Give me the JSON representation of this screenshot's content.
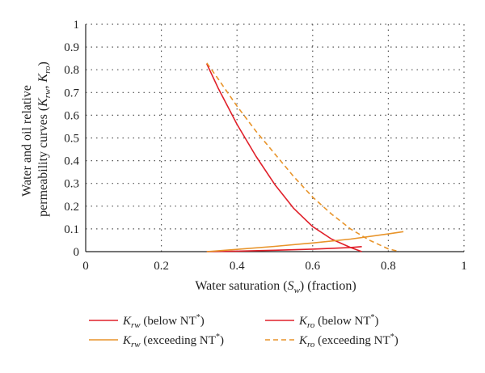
{
  "chart_data": {
    "type": "line",
    "title": "",
    "xlabel": "Water saturation (S_w) (fraction)",
    "ylabel_line1": "Water and oil relative",
    "ylabel_line2": "permeability curves (K_rw, K_ro)",
    "xlim": [
      0,
      1
    ],
    "ylim": [
      0,
      1
    ],
    "x_ticks": [
      0,
      0.2,
      0.4,
      0.6,
      0.8,
      1
    ],
    "x_tick_labels": [
      "0",
      "0.2",
      "0.4",
      "0.6",
      "0.8",
      "1"
    ],
    "y_ticks": [
      0,
      0.1,
      0.2,
      0.3,
      0.4,
      0.5,
      0.6,
      0.7,
      0.8,
      0.9,
      1
    ],
    "y_tick_labels": [
      "0",
      "0.1",
      "0.2",
      "0.3",
      "0.4",
      "0.5",
      "0.6",
      "0.7",
      "0.8",
      "0.9",
      "1"
    ],
    "grid": "dotted",
    "legend_position": "bottom",
    "series": [
      {
        "name": "K_rw (below NT*)",
        "color": "#e0202a",
        "dash": "solid",
        "x": [
          0.32,
          0.4,
          0.5,
          0.6,
          0.7,
          0.73
        ],
        "y": [
          0.0,
          0.002,
          0.006,
          0.011,
          0.018,
          0.022
        ]
      },
      {
        "name": "K_ro (below NT*)",
        "color": "#e0202a",
        "dash": "solid",
        "x": [
          0.32,
          0.35,
          0.4,
          0.45,
          0.5,
          0.55,
          0.6,
          0.65,
          0.7,
          0.73
        ],
        "y": [
          0.826,
          0.72,
          0.56,
          0.42,
          0.295,
          0.19,
          0.11,
          0.055,
          0.018,
          0.0
        ]
      },
      {
        "name": "K_rw (exceeding NT*)",
        "color": "#e8942a",
        "dash": "solid",
        "x": [
          0.32,
          0.4,
          0.5,
          0.6,
          0.7,
          0.8,
          0.84
        ],
        "y": [
          0.0,
          0.01,
          0.023,
          0.038,
          0.055,
          0.078,
          0.088
        ]
      },
      {
        "name": "K_ro (exceeding NT*)",
        "color": "#e8942a",
        "dash": "dashed",
        "x": [
          0.32,
          0.35,
          0.4,
          0.45,
          0.5,
          0.55,
          0.6,
          0.65,
          0.7,
          0.75,
          0.8,
          0.83
        ],
        "y": [
          0.83,
          0.76,
          0.64,
          0.53,
          0.43,
          0.33,
          0.24,
          0.165,
          0.1,
          0.05,
          0.012,
          0.0
        ]
      }
    ],
    "legend": [
      {
        "symbol": "K",
        "sub": "rw",
        "text": " (below NT",
        "sup": "*",
        "close": ")"
      },
      {
        "symbol": "K",
        "sub": "ro",
        "text": " (below NT",
        "sup": "*",
        "close": ")"
      },
      {
        "symbol": "K",
        "sub": "rw",
        "text": " (exceeding NT",
        "sup": "*",
        "close": ")"
      },
      {
        "symbol": "K",
        "sub": "ro",
        "text": " (exceeding NT",
        "sup": "*",
        "close": ")"
      }
    ],
    "xlabel_parts": {
      "pre": "Water saturation (",
      "sym": "S",
      "sub": "w",
      "post": ") (fraction)"
    },
    "ylabel_parts": {
      "line1": "Water and oil relative",
      "pre": "permeability curves (",
      "sym1": "K",
      "sub1": "rw",
      "mid": ", ",
      "sym2": "K",
      "sub2": "ro",
      "post": ")"
    }
  }
}
